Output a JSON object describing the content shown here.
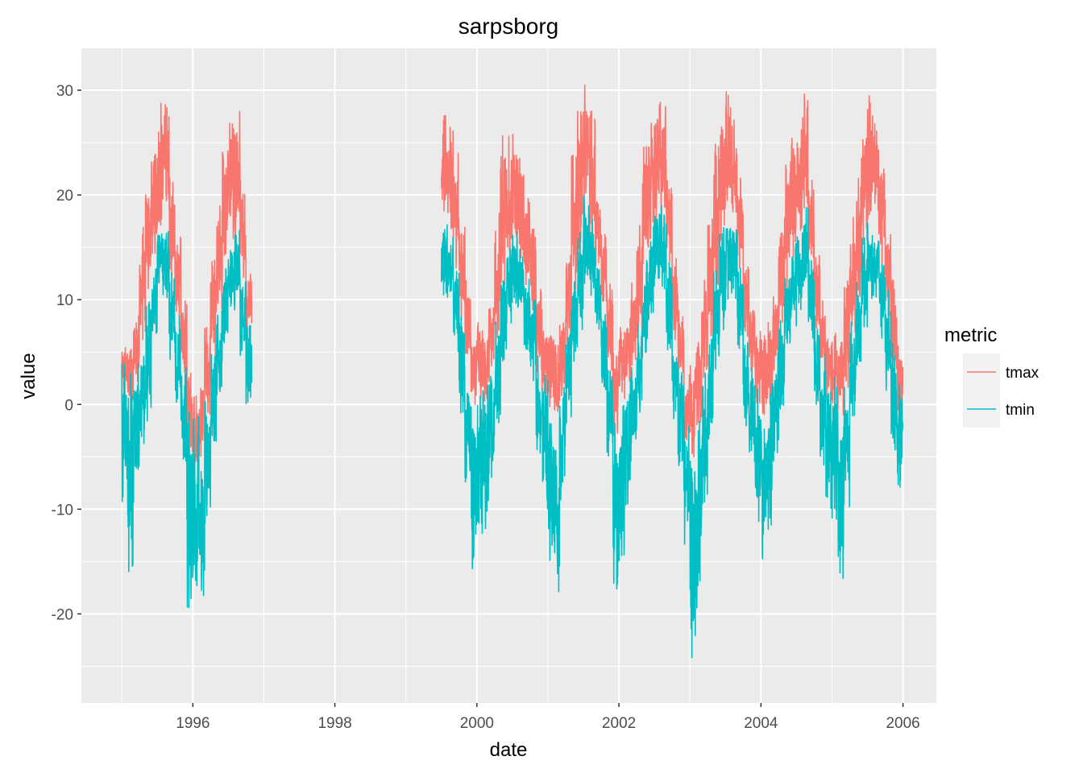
{
  "chart_data": {
    "type": "line",
    "title": "sarpsborg",
    "xlabel": "date",
    "ylabel": "value",
    "x_tick_labels": [
      "1996",
      "1998",
      "2000",
      "2002",
      "2004",
      "2006"
    ],
    "y_tick_labels": [
      "-20",
      "-10",
      "0",
      "10",
      "20",
      "30"
    ],
    "y_ticks": [
      -20,
      -10,
      0,
      10,
      20,
      30
    ],
    "ylim": [
      -28.5,
      34
    ],
    "xlim_years": [
      1994.43,
      2006.47
    ],
    "x_ticks_years": [
      1996,
      1998,
      2000,
      2002,
      2004,
      2006
    ],
    "grid": true,
    "background": "#ebebeb",
    "legend": {
      "title": "metric",
      "position": "right",
      "entries": [
        {
          "name": "tmax",
          "color": "#f8766d"
        },
        {
          "name": "tmin",
          "color": "#00bfc4"
        }
      ]
    },
    "data_segments": [
      {
        "start": "1995-01-01",
        "end": "1996-11-01"
      },
      {
        "start": "1999-07-01",
        "end": "2005-12-31"
      }
    ],
    "series": [
      {
        "name": "tmax",
        "color": "#f8766d",
        "monthly_points": [
          [
            "1995-01",
            1,
            6
          ],
          [
            "1995-02",
            0,
            6
          ],
          [
            "1995-03",
            2,
            9
          ],
          [
            "1995-04",
            5,
            17
          ],
          [
            "1995-05",
            10,
            23
          ],
          [
            "1995-06",
            14,
            25
          ],
          [
            "1995-07",
            17,
            29
          ],
          [
            "1995-08",
            17,
            29
          ],
          [
            "1995-09",
            12,
            22
          ],
          [
            "1995-10",
            7,
            16
          ],
          [
            "1995-11",
            2,
            10
          ],
          [
            "1995-12",
            -5,
            3
          ],
          [
            "1996-01",
            -6,
            1
          ],
          [
            "1996-02",
            -5,
            2
          ],
          [
            "1996-03",
            -1,
            8
          ],
          [
            "1996-04",
            4,
            14
          ],
          [
            "1996-05",
            8,
            20
          ],
          [
            "1996-06",
            14,
            25
          ],
          [
            "1996-07",
            15,
            27
          ],
          [
            "1996-08",
            16,
            28
          ],
          [
            "1996-09",
            12,
            22
          ],
          [
            "1996-10",
            7,
            13
          ],
          [
            "1999-07",
            18,
            28
          ],
          [
            "1999-08",
            16,
            27
          ],
          [
            "1999-09",
            13,
            24
          ],
          [
            "1999-10",
            8,
            17
          ],
          [
            "1999-11",
            3,
            12
          ],
          [
            "1999-12",
            0,
            7
          ],
          [
            "2000-01",
            0,
            8
          ],
          [
            "2000-02",
            0,
            8
          ],
          [
            "2000-03",
            2,
            11
          ],
          [
            "2000-04",
            6,
            19
          ],
          [
            "2000-05",
            11,
            26
          ],
          [
            "2000-06",
            13,
            26
          ],
          [
            "2000-07",
            15,
            26
          ],
          [
            "2000-08",
            14,
            24
          ],
          [
            "2000-09",
            11,
            20
          ],
          [
            "2000-10",
            8,
            17
          ],
          [
            "2000-11",
            3,
            11
          ],
          [
            "2000-12",
            0,
            8
          ],
          [
            "2001-01",
            -1,
            7
          ],
          [
            "2001-02",
            -2,
            6
          ],
          [
            "2001-03",
            0,
            9
          ],
          [
            "2001-04",
            5,
            16
          ],
          [
            "2001-05",
            10,
            24
          ],
          [
            "2001-06",
            14,
            28
          ],
          [
            "2001-07",
            17,
            31
          ],
          [
            "2001-08",
            16,
            28
          ],
          [
            "2001-09",
            12,
            21
          ],
          [
            "2001-10",
            8,
            17
          ],
          [
            "2001-11",
            3,
            12
          ],
          [
            "2001-12",
            -3,
            5
          ],
          [
            "2002-01",
            0,
            8
          ],
          [
            "2002-02",
            1,
            9
          ],
          [
            "2002-03",
            3,
            12
          ],
          [
            "2002-04",
            6,
            18
          ],
          [
            "2002-05",
            12,
            25
          ],
          [
            "2002-06",
            15,
            27
          ],
          [
            "2002-07",
            17,
            29
          ],
          [
            "2002-08",
            18,
            29
          ],
          [
            "2002-09",
            13,
            22
          ],
          [
            "2002-10",
            6,
            14
          ],
          [
            "2002-11",
            2,
            9
          ],
          [
            "2002-12",
            -4,
            3
          ],
          [
            "2003-01",
            -5,
            4
          ],
          [
            "2003-02",
            -2,
            6
          ],
          [
            "2003-03",
            2,
            12
          ],
          [
            "2003-04",
            6,
            18
          ],
          [
            "2003-05",
            11,
            25
          ],
          [
            "2003-06",
            15,
            28
          ],
          [
            "2003-07",
            18,
            30
          ],
          [
            "2003-08",
            17,
            28
          ],
          [
            "2003-09",
            13,
            22
          ],
          [
            "2003-10",
            6,
            15
          ],
          [
            "2003-11",
            3,
            10
          ],
          [
            "2003-12",
            0,
            7
          ],
          [
            "2004-01",
            -2,
            7
          ],
          [
            "2004-02",
            0,
            8
          ],
          [
            "2004-03",
            3,
            11
          ],
          [
            "2004-04",
            7,
            19
          ],
          [
            "2004-05",
            11,
            24
          ],
          [
            "2004-06",
            14,
            26
          ],
          [
            "2004-07",
            16,
            27
          ],
          [
            "2004-08",
            17,
            30
          ],
          [
            "2004-09",
            13,
            22
          ],
          [
            "2004-10",
            7,
            15
          ],
          [
            "2004-11",
            3,
            10
          ],
          [
            "2004-12",
            0,
            7
          ],
          [
            "2005-01",
            0,
            7
          ],
          [
            "2005-02",
            -1,
            6
          ],
          [
            "2005-03",
            1,
            12
          ],
          [
            "2005-04",
            6,
            18
          ],
          [
            "2005-05",
            10,
            22
          ],
          [
            "2005-06",
            15,
            26
          ],
          [
            "2005-07",
            17,
            31
          ],
          [
            "2005-08",
            16,
            27
          ],
          [
            "2005-09",
            13,
            23
          ],
          [
            "2005-10",
            8,
            17
          ],
          [
            "2005-11",
            3,
            12
          ],
          [
            "2005-12",
            -2,
            6
          ]
        ]
      },
      {
        "name": "tmin",
        "color": "#00bfc4",
        "monthly_points": [
          [
            "1995-01",
            -10,
            4
          ],
          [
            "1995-02",
            -16,
            3
          ],
          [
            "1995-03",
            -9,
            4
          ],
          [
            "1995-04",
            -5,
            6
          ],
          [
            "1995-05",
            -2,
            10
          ],
          [
            "1995-06",
            5,
            13
          ],
          [
            "1995-07",
            10,
            18
          ],
          [
            "1995-08",
            10,
            17
          ],
          [
            "1995-09",
            4,
            13
          ],
          [
            "1995-10",
            0,
            9
          ],
          [
            "1995-11",
            -6,
            5
          ],
          [
            "1995-12",
            -20,
            0
          ],
          [
            "1996-01",
            -19,
            -1
          ],
          [
            "1996-02",
            -19,
            -3
          ],
          [
            "1996-03",
            -12,
            2
          ],
          [
            "1996-04",
            -6,
            5
          ],
          [
            "1996-05",
            0,
            9
          ],
          [
            "1996-06",
            5,
            13
          ],
          [
            "1996-07",
            9,
            15
          ],
          [
            "1996-08",
            9,
            17
          ],
          [
            "1996-09",
            4,
            13
          ],
          [
            "1996-10",
            -2,
            8
          ],
          [
            "1999-07",
            10,
            18
          ],
          [
            "1999-08",
            9,
            17
          ],
          [
            "1999-09",
            5,
            13
          ],
          [
            "1999-10",
            -2,
            9
          ],
          [
            "1999-11",
            -10,
            4
          ],
          [
            "1999-12",
            -16,
            1
          ],
          [
            "2000-01",
            -15,
            1
          ],
          [
            "2000-02",
            -12,
            2
          ],
          [
            "2000-03",
            -7,
            4
          ],
          [
            "2000-04",
            -2,
            8
          ],
          [
            "2000-05",
            3,
            14
          ],
          [
            "2000-06",
            7,
            16
          ],
          [
            "2000-07",
            8,
            17
          ],
          [
            "2000-08",
            8,
            15
          ],
          [
            "2000-09",
            5,
            12
          ],
          [
            "2000-10",
            2,
            10
          ],
          [
            "2000-11",
            -5,
            5
          ],
          [
            "2000-12",
            -10,
            3
          ],
          [
            "2001-01",
            -15,
            0
          ],
          [
            "2001-02",
            -18,
            -1
          ],
          [
            "2001-03",
            -10,
            2
          ],
          [
            "2001-04",
            -2,
            7
          ],
          [
            "2001-05",
            3,
            13
          ],
          [
            "2001-06",
            7,
            17
          ],
          [
            "2001-07",
            11,
            20
          ],
          [
            "2001-08",
            10,
            18
          ],
          [
            "2001-09",
            6,
            13
          ],
          [
            "2001-10",
            1,
            10
          ],
          [
            "2001-11",
            -6,
            5
          ],
          [
            "2001-12",
            -18,
            -1
          ],
          [
            "2002-01",
            -15,
            0
          ],
          [
            "2002-02",
            -10,
            3
          ],
          [
            "2002-03",
            -6,
            5
          ],
          [
            "2002-04",
            -2,
            8
          ],
          [
            "2002-05",
            4,
            14
          ],
          [
            "2002-06",
            8,
            17
          ],
          [
            "2002-07",
            10,
            19
          ],
          [
            "2002-08",
            11,
            19
          ],
          [
            "2002-09",
            5,
            14
          ],
          [
            "2002-10",
            -3,
            7
          ],
          [
            "2002-11",
            -8,
            4
          ],
          [
            "2002-12",
            -15,
            -1
          ],
          [
            "2003-01",
            -26,
            -2
          ],
          [
            "2003-02",
            -21,
            -1
          ],
          [
            "2003-03",
            -10,
            3
          ],
          [
            "2003-04",
            -4,
            7
          ],
          [
            "2003-05",
            3,
            13
          ],
          [
            "2003-06",
            7,
            17
          ],
          [
            "2003-07",
            10,
            19
          ],
          [
            "2003-08",
            10,
            17
          ],
          [
            "2003-09",
            5,
            13
          ],
          [
            "2003-10",
            -3,
            7
          ],
          [
            "2003-11",
            -7,
            5
          ],
          [
            "2003-12",
            -12,
            2
          ],
          [
            "2004-01",
            -15,
            0
          ],
          [
            "2004-02",
            -12,
            2
          ],
          [
            "2004-03",
            -6,
            5
          ],
          [
            "2004-04",
            -1,
            9
          ],
          [
            "2004-05",
            4,
            13
          ],
          [
            "2004-06",
            7,
            16
          ],
          [
            "2004-07",
            9,
            16
          ],
          [
            "2004-08",
            10,
            19
          ],
          [
            "2004-09",
            6,
            14
          ],
          [
            "2004-10",
            -1,
            9
          ],
          [
            "2004-11",
            -6,
            6
          ],
          [
            "2004-12",
            -10,
            4
          ],
          [
            "2005-01",
            -11,
            3
          ],
          [
            "2005-02",
            -18,
            1
          ],
          [
            "2005-03",
            -10,
            3
          ],
          [
            "2005-04",
            -2,
            8
          ],
          [
            "2005-05",
            2,
            12
          ],
          [
            "2005-06",
            7,
            16
          ],
          [
            "2005-07",
            10,
            18
          ],
          [
            "2005-08",
            10,
            17
          ],
          [
            "2005-09",
            6,
            14
          ],
          [
            "2005-10",
            1,
            11
          ],
          [
            "2005-11",
            -5,
            6
          ],
          [
            "2005-12",
            -9,
            2
          ]
        ]
      }
    ]
  }
}
